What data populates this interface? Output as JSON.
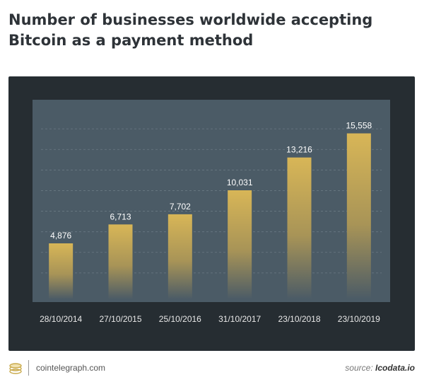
{
  "title": "Number of businesses worldwide accepting Bitcoin as a payment method",
  "footer": {
    "site": "cointelegraph.com",
    "source_prefix": "source: ",
    "source_name": "Icodata.io",
    "logo_icon": "coin-stack-icon"
  },
  "colors": {
    "panel": "#262d32",
    "plot": "#4b5b66",
    "bar_top": "#d8b657",
    "bar_bottom": "#4b5b66"
  },
  "chart_data": {
    "type": "bar",
    "title": "Number of businesses worldwide accepting Bitcoin as a payment method",
    "categories": [
      "28/10/2014",
      "27/10/2015",
      "25/10/2016",
      "31/10/2017",
      "23/10/2018",
      "23/10/2019"
    ],
    "values": [
      4876,
      6713,
      7702,
      10031,
      13216,
      15558
    ],
    "value_labels": [
      "4,876",
      "6,713",
      "7,702",
      "10,031",
      "13,216",
      "15,558"
    ],
    "ylim": [
      0,
      18000
    ],
    "grid": true,
    "legend": "none"
  }
}
